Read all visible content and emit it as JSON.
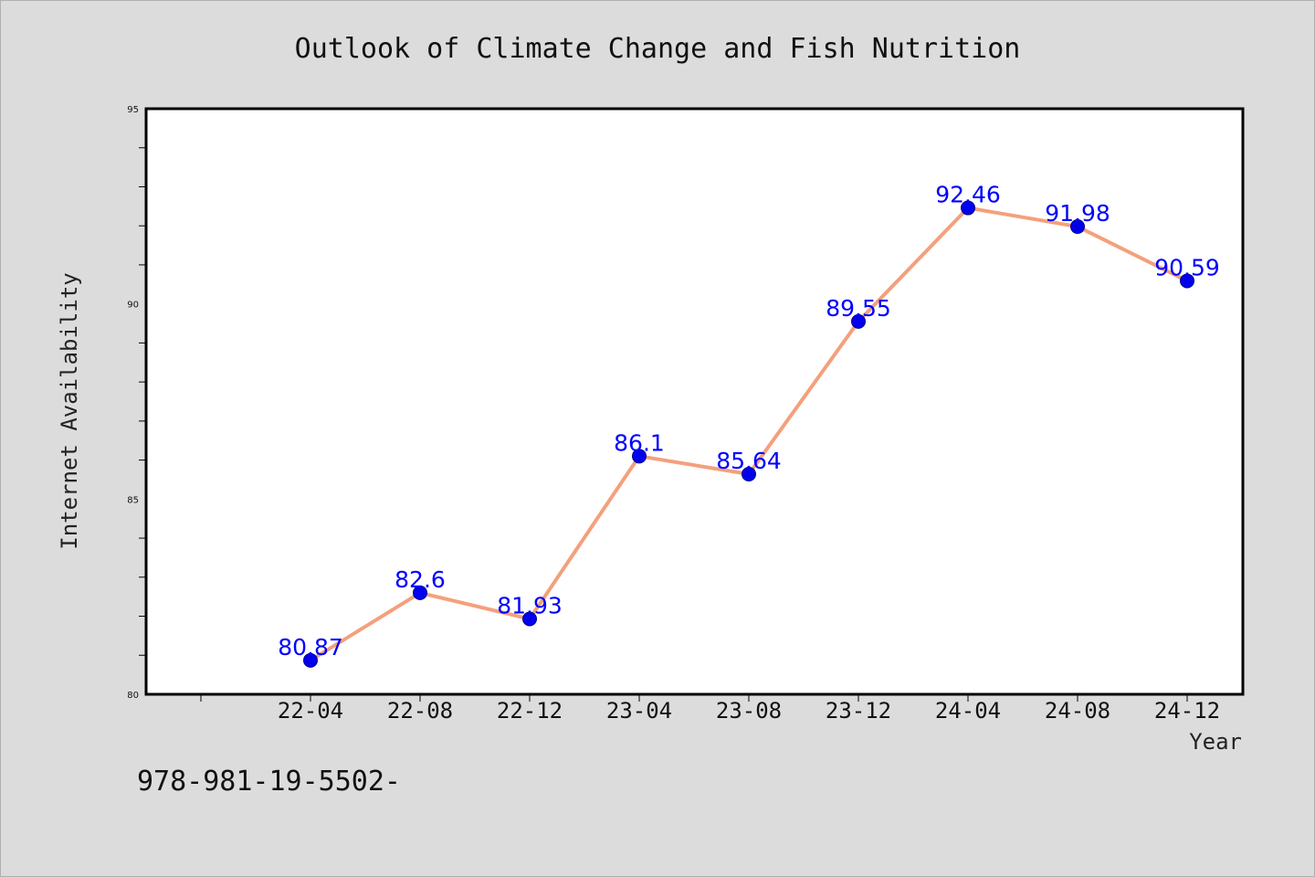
{
  "chart_data": {
    "type": "line",
    "title": "Outlook of Climate Change and Fish Nutrition",
    "xlabel": "Year",
    "ylabel": "Internet Availability",
    "categories": [
      "22-04",
      "22-08",
      "22-12",
      "23-04",
      "23-08",
      "23-12",
      "24-04",
      "24-08",
      "24-12"
    ],
    "series": [
      {
        "values": [
          80.87,
          82.6,
          81.93,
          86.1,
          85.64,
          89.55,
          92.46,
          91.98,
          90.59
        ]
      }
    ],
    "data_labels": [
      "80.87",
      "82.6",
      "81.93",
      "86.1",
      "85.64",
      "89.55",
      "92.46",
      "91.98",
      "90.59"
    ],
    "ylim": [
      80,
      95
    ],
    "yticks": [
      "80",
      "85",
      "90",
      "95"
    ],
    "grid": false,
    "line_color": "#f4a07c",
    "marker_color": "#0000ee",
    "label_color": "#0000ff"
  },
  "footnote": "978-981-19-5502-"
}
